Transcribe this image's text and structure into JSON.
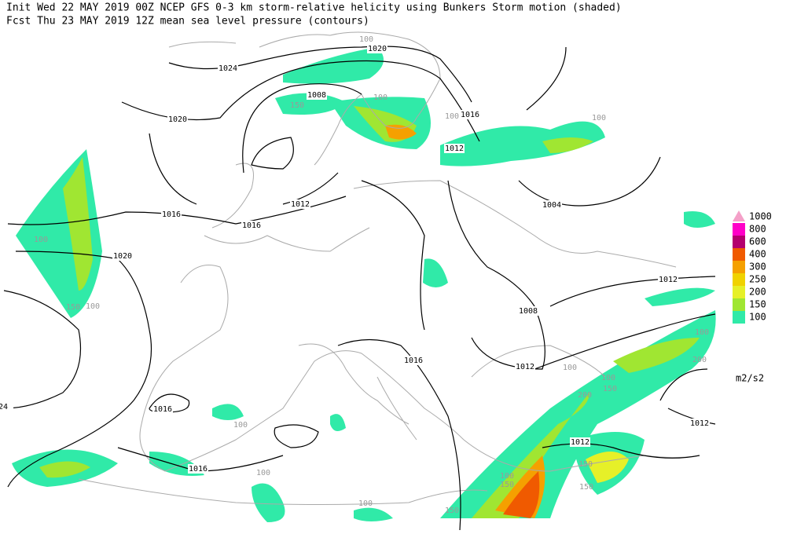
{
  "header": {
    "line1": "Init  Wed 22 MAY 2019 00Z  NCEP GFS 0-3 km storm-relative helicity using Bunkers Storm motion (shaded)",
    "line2": "Fcst Thu 23 MAY 2019 12Z  mean sea level pressure (contours)"
  },
  "legend": {
    "levels": [
      {
        "value": 1000,
        "color": "#f4a0c8"
      },
      {
        "value": 800,
        "color": "#ff00c8"
      },
      {
        "value": 600,
        "color": "#b4006e"
      },
      {
        "value": 400,
        "color": "#f05a00"
      },
      {
        "value": 300,
        "color": "#f5a000"
      },
      {
        "value": 250,
        "color": "#f0d200"
      },
      {
        "value": 200,
        "color": "#e6f028"
      },
      {
        "value": 150,
        "color": "#a0e632"
      },
      {
        "value": 100,
        "color": "#30eaa8"
      }
    ],
    "units": "m2/s2"
  },
  "contour_labels": [
    1024,
    1020,
    1008,
    1020,
    1016,
    1012,
    1016,
    1016,
    1012,
    1004,
    1020,
    1012,
    1008,
    1016,
    1012,
    "24",
    1016,
    1012,
    1012,
    1016
  ],
  "shade_labels": [
    100,
    150,
    100,
    100,
    100,
    100,
    150,
    100,
    100,
    100,
    100,
    150,
    100,
    150,
    150,
    150,
    200,
    150,
    100,
    100,
    200,
    100
  ]
}
